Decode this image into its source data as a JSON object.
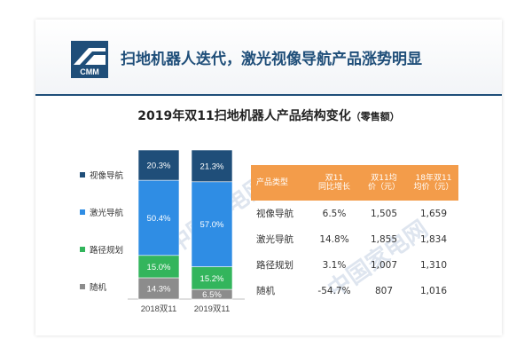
{
  "header": {
    "logo_text": "CMM",
    "title": "扫地机器人迭代，激光视像导航产品涨势明显"
  },
  "watermark_text": "中国家电网",
  "chart_data": {
    "type": "bar",
    "stacked": true,
    "normalized": true,
    "title": "2019年双11扫地机器人产品结构变化",
    "title_unit": "（零售额）",
    "categories": [
      "2018双11",
      "2019双11"
    ],
    "series": [
      {
        "name": "随机",
        "values": [
          14.3,
          6.5
        ],
        "labels": [
          "14.3%",
          "6.5%"
        ],
        "color": "#8c8c8c"
      },
      {
        "name": "路径规划",
        "values": [
          15.0,
          15.2
        ],
        "labels": [
          "15.0%",
          "15.2%"
        ],
        "color": "#33b55c"
      },
      {
        "name": "激光导航",
        "values": [
          50.4,
          57.0
        ],
        "labels": [
          "50.4%",
          "57.0%"
        ],
        "color": "#2f8de4"
      },
      {
        "name": "视像导航",
        "values": [
          20.3,
          21.3
        ],
        "labels": [
          "20.3%",
          "21.3%"
        ],
        "color": "#1f4e79"
      }
    ],
    "ylim": [
      0,
      100
    ],
    "legend_position": "left"
  },
  "legend": {
    "items": [
      {
        "label": "视像导航",
        "color": "#1f4e79"
      },
      {
        "label": "激光导航",
        "color": "#2f8de4"
      },
      {
        "label": "路径规划",
        "color": "#33b55c"
      },
      {
        "label": "随机",
        "color": "#8c8c8c"
      }
    ]
  },
  "table": {
    "headers": [
      "产品类型",
      "双11同比增长",
      "双11均价（元）",
      "18年双11均价（元）"
    ],
    "header_lines": [
      [
        "产品类型"
      ],
      [
        "双11",
        "同比增长"
      ],
      [
        "双11均",
        "价（元）"
      ],
      [
        "18年双11",
        "均价（元）"
      ]
    ],
    "rows": [
      [
        "视像导航",
        "6.5%",
        "1,505",
        "1,659"
      ],
      [
        "激光导航",
        "14.8%",
        "1,855",
        "1,834"
      ],
      [
        "路径规划",
        "3.1%",
        "1,007",
        "1,310"
      ],
      [
        "随机",
        "-54.7%",
        "807",
        "1,016"
      ]
    ],
    "header_color": "#f39c4a"
  }
}
